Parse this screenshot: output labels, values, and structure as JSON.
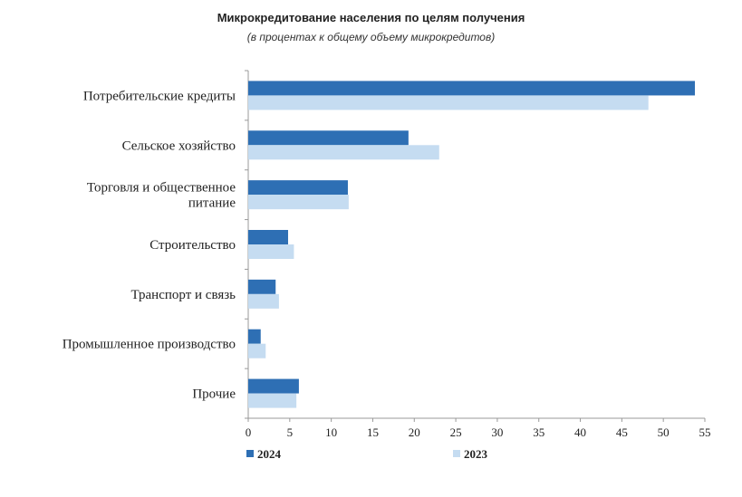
{
  "chart_data": {
    "type": "bar",
    "orientation": "horizontal",
    "title": "Микрокредитование населения по целям получения",
    "subtitle": "(в процентах к общему объему микрокредитов)",
    "categories": [
      [
        "Потребительские кредиты"
      ],
      [
        "Сельское хозяйство"
      ],
      [
        "Торговля и общественное",
        "питание"
      ],
      [
        "Строительство"
      ],
      [
        "Транспорт и связь"
      ],
      [
        "Промышленное производство"
      ],
      [
        "Прочие"
      ]
    ],
    "series": [
      {
        "name": "2024",
        "color": "#2e6fb4",
        "values": [
          53.8,
          19.3,
          12.0,
          4.8,
          3.3,
          1.5,
          6.1
        ]
      },
      {
        "name": "2023",
        "color": "#c5dcf1",
        "values": [
          48.2,
          23.0,
          12.1,
          5.5,
          3.7,
          2.1,
          5.8
        ]
      }
    ],
    "xlim": [
      0,
      55
    ],
    "xticks": [
      0,
      5,
      10,
      15,
      20,
      25,
      30,
      35,
      40,
      45,
      50,
      55
    ],
    "legend": "bottom"
  }
}
